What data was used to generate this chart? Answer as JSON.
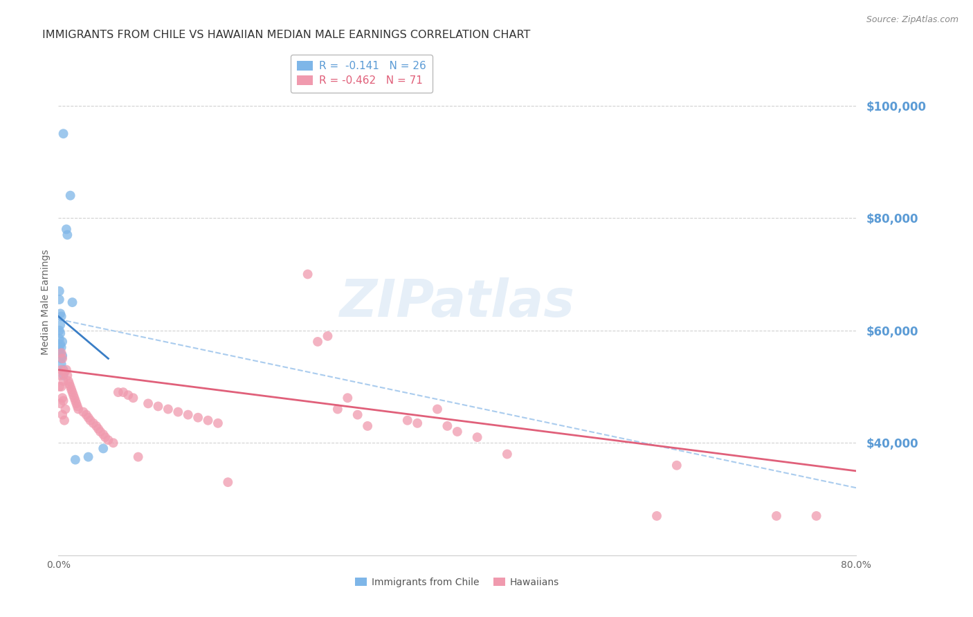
{
  "title": "IMMIGRANTS FROM CHILE VS HAWAIIAN MEDIAN MALE EARNINGS CORRELATION CHART",
  "source": "Source: ZipAtlas.com",
  "ylabel": "Median Male Earnings",
  "watermark": "ZIPatlas",
  "legend_blue_r": "-0.141",
  "legend_blue_n": "26",
  "legend_pink_r": "-0.462",
  "legend_pink_n": "71",
  "legend_blue_label": "Immigrants from Chile",
  "legend_pink_label": "Hawaiians",
  "ytick_labels": [
    "$100,000",
    "$80,000",
    "$60,000",
    "$40,000"
  ],
  "ytick_values": [
    100000,
    80000,
    60000,
    40000
  ],
  "xlim": [
    0.0,
    0.8
  ],
  "ylim": [
    20000,
    110000
  ],
  "blue_color": "#7EB6E8",
  "pink_color": "#F09AAE",
  "blue_line_color": "#3A7EC6",
  "pink_line_color": "#E0607A",
  "dashed_color": "#AACCEE",
  "background_color": "#FFFFFF",
  "grid_color": "#CCCCCC",
  "right_axis_color": "#5B9BD5",
  "title_color": "#333333",
  "blue_points": [
    [
      0.005,
      95000
    ],
    [
      0.012,
      84000
    ],
    [
      0.008,
      78000
    ],
    [
      0.009,
      77000
    ],
    [
      0.001,
      67000
    ],
    [
      0.001,
      65500
    ],
    [
      0.002,
      63000
    ],
    [
      0.003,
      62500
    ],
    [
      0.002,
      61000
    ],
    [
      0.001,
      60000
    ],
    [
      0.002,
      59500
    ],
    [
      0.001,
      58500
    ],
    [
      0.004,
      58000
    ],
    [
      0.002,
      57500
    ],
    [
      0.003,
      57000
    ],
    [
      0.001,
      56500
    ],
    [
      0.002,
      56000
    ],
    [
      0.004,
      55500
    ],
    [
      0.003,
      55000
    ],
    [
      0.003,
      54000
    ],
    [
      0.005,
      53000
    ],
    [
      0.005,
      52000
    ],
    [
      0.014,
      65000
    ],
    [
      0.017,
      37000
    ],
    [
      0.03,
      37500
    ],
    [
      0.045,
      39000
    ]
  ],
  "pink_points": [
    [
      0.002,
      52000
    ],
    [
      0.003,
      56000
    ],
    [
      0.004,
      55000
    ],
    [
      0.003,
      53000
    ],
    [
      0.005,
      51000
    ],
    [
      0.003,
      50000
    ],
    [
      0.006,
      52500
    ],
    [
      0.001,
      50000
    ],
    [
      0.002,
      47000
    ],
    [
      0.004,
      48000
    ],
    [
      0.005,
      47500
    ],
    [
      0.007,
      46000
    ],
    [
      0.004,
      45000
    ],
    [
      0.006,
      44000
    ],
    [
      0.008,
      53000
    ],
    [
      0.009,
      52000
    ],
    [
      0.01,
      51000
    ],
    [
      0.011,
      50500
    ],
    [
      0.012,
      50000
    ],
    [
      0.013,
      49500
    ],
    [
      0.014,
      49000
    ],
    [
      0.015,
      48500
    ],
    [
      0.016,
      48000
    ],
    [
      0.017,
      47500
    ],
    [
      0.018,
      47000
    ],
    [
      0.019,
      46500
    ],
    [
      0.02,
      46000
    ],
    [
      0.025,
      45500
    ],
    [
      0.028,
      45000
    ],
    [
      0.03,
      44500
    ],
    [
      0.032,
      44000
    ],
    [
      0.035,
      43500
    ],
    [
      0.038,
      43000
    ],
    [
      0.04,
      42500
    ],
    [
      0.042,
      42000
    ],
    [
      0.045,
      41500
    ],
    [
      0.047,
      41000
    ],
    [
      0.05,
      40500
    ],
    [
      0.055,
      40000
    ],
    [
      0.06,
      49000
    ],
    [
      0.065,
      49000
    ],
    [
      0.07,
      48500
    ],
    [
      0.075,
      48000
    ],
    [
      0.08,
      37500
    ],
    [
      0.09,
      47000
    ],
    [
      0.1,
      46500
    ],
    [
      0.11,
      46000
    ],
    [
      0.12,
      45500
    ],
    [
      0.13,
      45000
    ],
    [
      0.14,
      44500
    ],
    [
      0.15,
      44000
    ],
    [
      0.16,
      43500
    ],
    [
      0.17,
      33000
    ],
    [
      0.25,
      70000
    ],
    [
      0.26,
      58000
    ],
    [
      0.27,
      59000
    ],
    [
      0.28,
      46000
    ],
    [
      0.29,
      48000
    ],
    [
      0.3,
      45000
    ],
    [
      0.31,
      43000
    ],
    [
      0.35,
      44000
    ],
    [
      0.36,
      43500
    ],
    [
      0.38,
      46000
    ],
    [
      0.39,
      43000
    ],
    [
      0.4,
      42000
    ],
    [
      0.42,
      41000
    ],
    [
      0.45,
      38000
    ],
    [
      0.6,
      27000
    ],
    [
      0.62,
      36000
    ],
    [
      0.72,
      27000
    ],
    [
      0.76,
      27000
    ]
  ],
  "blue_line": [
    [
      0.0,
      62500
    ],
    [
      0.05,
      55000
    ]
  ],
  "pink_line": [
    [
      0.0,
      53000
    ],
    [
      0.8,
      35000
    ]
  ],
  "dashed_line": [
    [
      0.0,
      62000
    ],
    [
      0.8,
      32000
    ]
  ]
}
